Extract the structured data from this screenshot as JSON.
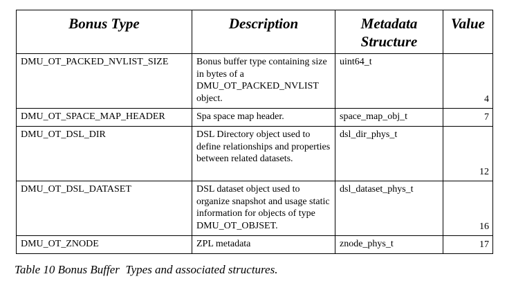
{
  "table": {
    "headers": {
      "type": "Bonus Type",
      "description": "Description",
      "metadata": "Metadata Structure",
      "value": "Value"
    },
    "rows": [
      {
        "type": "DMU_OT_PACKED_NVLIST_SIZE",
        "description": "Bonus buffer type containing size in bytes of a DMU_OT_PACKED_NVLIST object.",
        "metadata": "uint64_t",
        "value": "4"
      },
      {
        "type": "DMU_OT_SPACE_MAP_HEADER",
        "description": "Spa space map header.",
        "metadata": "space_map_obj_t",
        "value": "7"
      },
      {
        "type": "DMU_OT_DSL_DIR",
        "description": "DSL Directory  object used to define relationships and properties between related datasets.",
        "metadata": "dsl_dir_phys_t",
        "value": "12"
      },
      {
        "type": "DMU_OT_DSL_DATASET",
        "description": "DSL dataset object used to organize snapshot and usage static information for objects of type DMU_OT_OBJSET.",
        "metadata": "dsl_dataset_phys_t",
        "value": "16"
      },
      {
        "type": "DMU_OT_ZNODE",
        "description": "ZPL metadata",
        "metadata": "znode_phys_t",
        "value": "17"
      }
    ]
  },
  "caption": "Table 10 Bonus Buffer  Types and associated structures."
}
